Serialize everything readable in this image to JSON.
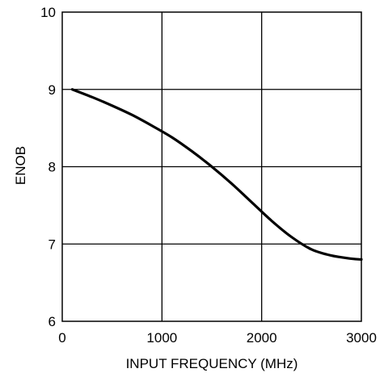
{
  "chart_data": {
    "type": "line",
    "title": "",
    "xlabel": "INPUT FREQUENCY (MHz)",
    "ylabel": "ENOB",
    "xlim": [
      0,
      3000
    ],
    "ylim": [
      6,
      10
    ],
    "xticks": [
      0,
      1000,
      2000,
      3000
    ],
    "yticks": [
      6,
      7,
      8,
      9,
      10
    ],
    "xtick_labels": [
      "0",
      "1000",
      "2000",
      "3000"
    ],
    "ytick_labels": [
      "6",
      "7",
      "8",
      "9",
      "10"
    ],
    "grid": true,
    "legend": "none",
    "series": [
      {
        "color": "#000000",
        "x": [
          100,
          300,
          500,
          700,
          900,
          1100,
          1300,
          1500,
          1700,
          1900,
          2100,
          2300,
          2500,
          2700,
          2900,
          3000
        ],
        "y": [
          9.0,
          8.9,
          8.79,
          8.67,
          8.53,
          8.38,
          8.2,
          8.0,
          7.78,
          7.54,
          7.3,
          7.09,
          6.93,
          6.85,
          6.81,
          6.8
        ]
      }
    ]
  }
}
